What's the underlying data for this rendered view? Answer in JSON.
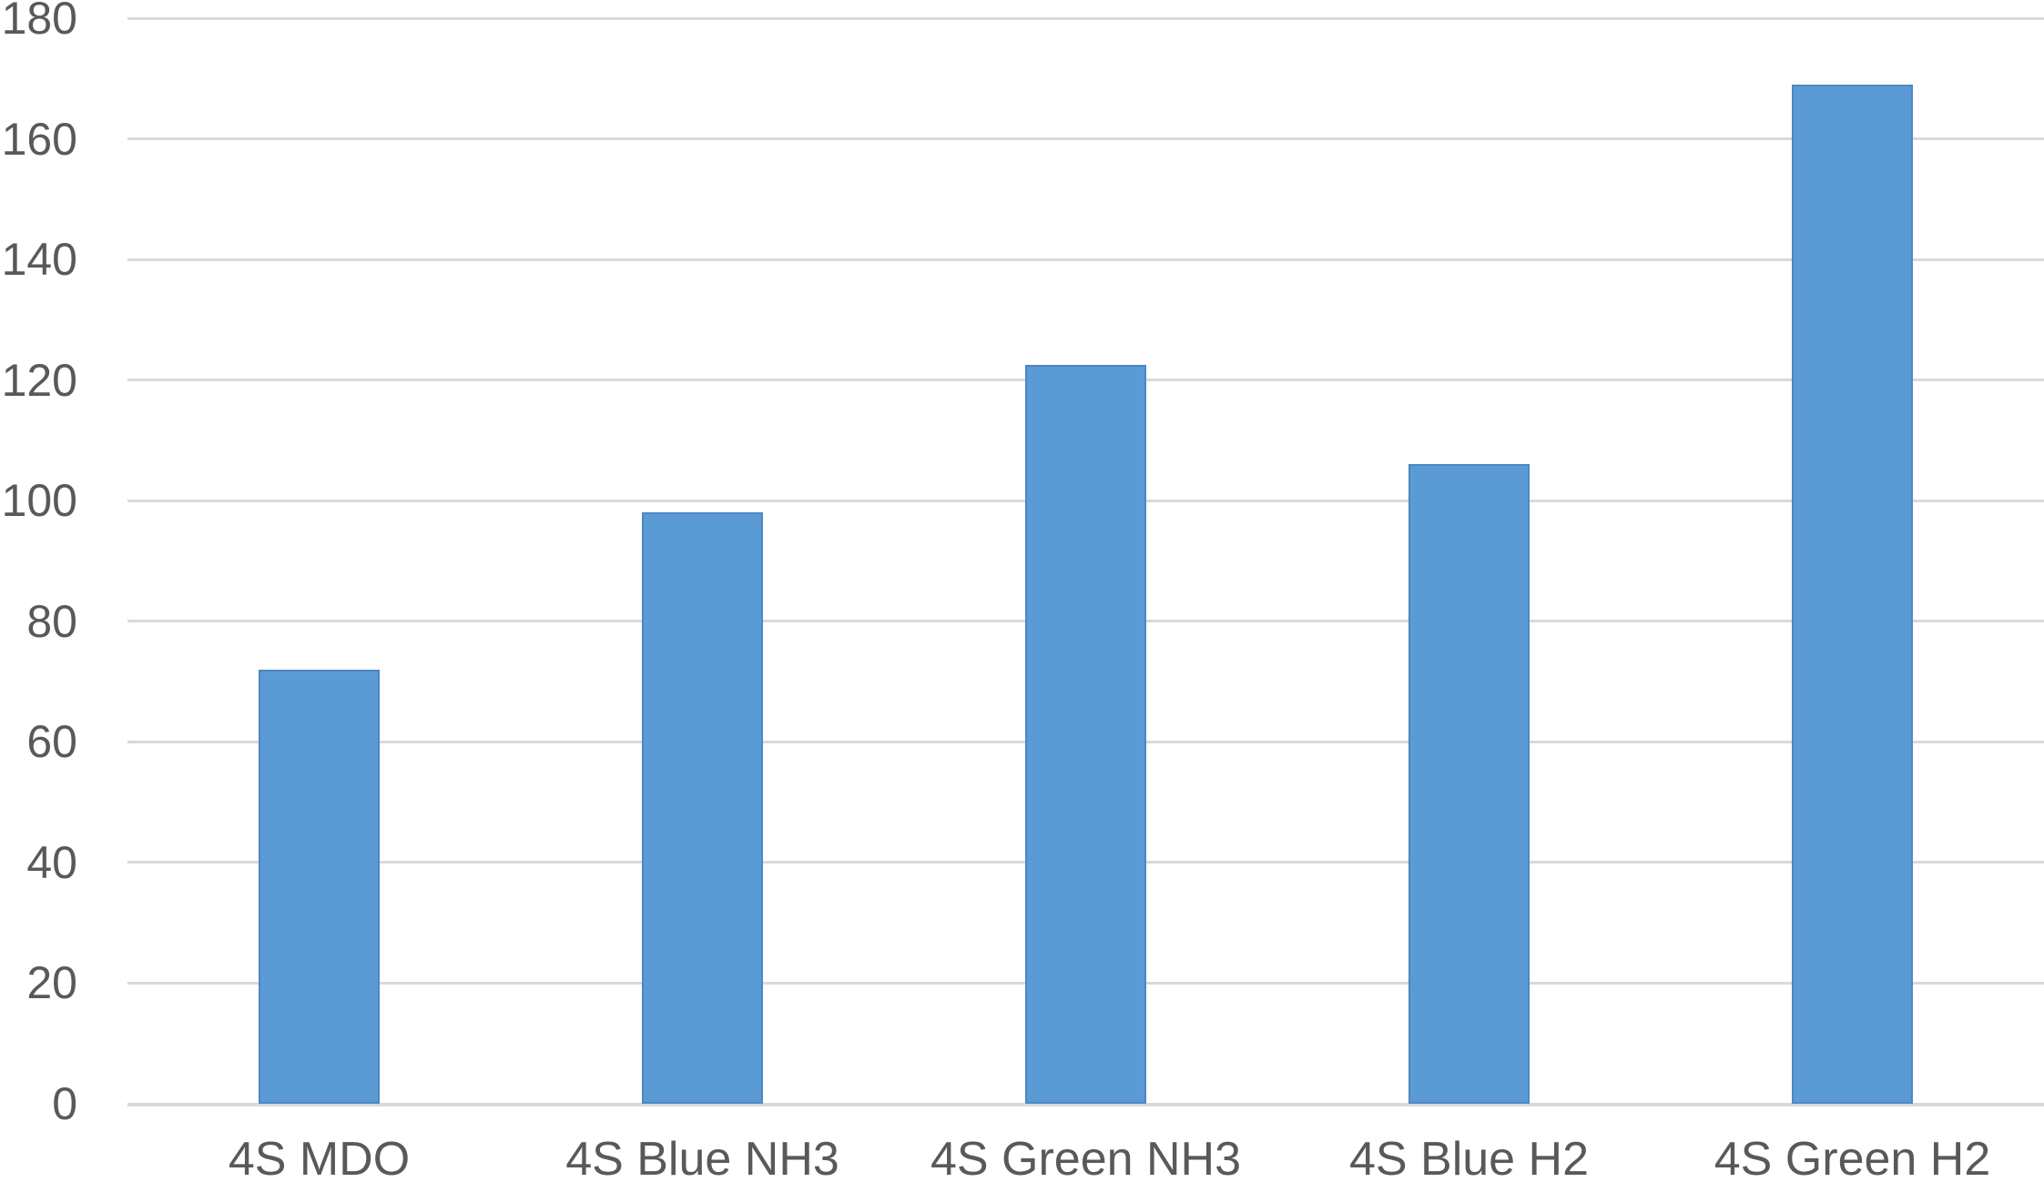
{
  "chart_data": {
    "type": "bar",
    "categories": [
      "4S MDO",
      "4S Blue NH3",
      "4S Green NH3",
      "4S Blue H2",
      "4S Green H2"
    ],
    "values": [
      72,
      98,
      122.5,
      106,
      169
    ],
    "title": "",
    "xlabel": "",
    "ylabel": "",
    "ylim": [
      0,
      180
    ],
    "ytick_step": 20,
    "yticks": [
      0,
      20,
      40,
      60,
      80,
      100,
      120,
      140,
      160,
      180
    ],
    "ytick_labels": [
      "0",
      "20",
      "40",
      "60",
      "80",
      "100",
      "120",
      "140",
      "160",
      "180"
    ],
    "grid": true,
    "legend": false,
    "series_name": "",
    "colors": {
      "bar_fill": "#5B9BD5",
      "bar_border": "#4E87C3",
      "gridline": "#D9D9D9",
      "baseline": "#D9D9D9",
      "tick_text": "#595959",
      "background": "#FFFFFF"
    }
  }
}
